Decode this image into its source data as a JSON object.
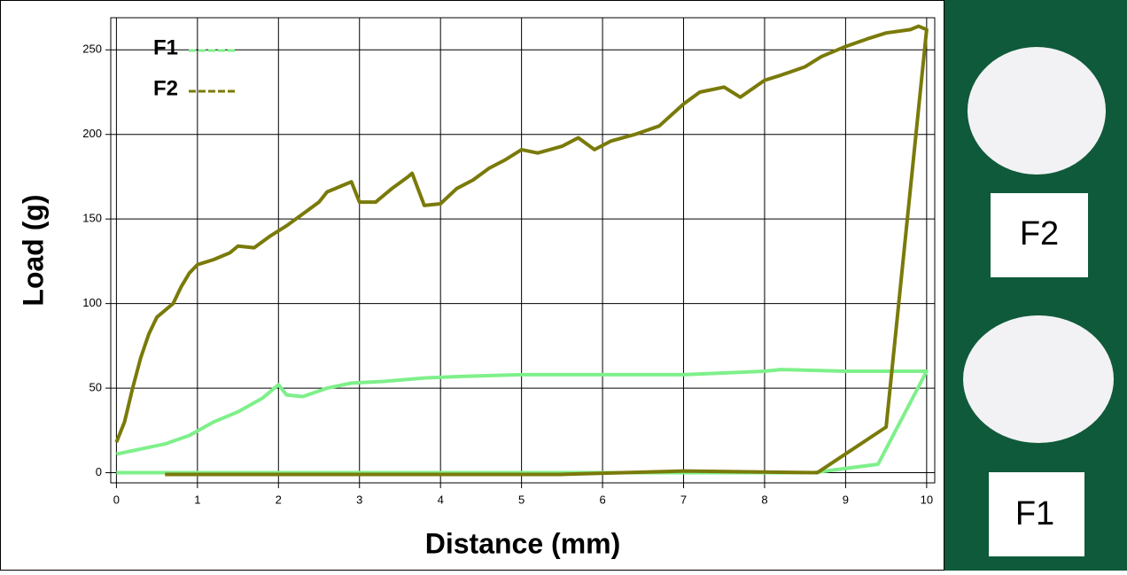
{
  "chart_data": {
    "type": "line",
    "xlabel": "Distance (mm)",
    "ylabel": "Load (g)",
    "xlim": [
      -0.07,
      10.1
    ],
    "ylim": [
      -6,
      269
    ],
    "xticks": [
      0,
      1,
      2,
      3,
      4,
      5,
      6,
      7,
      8,
      9,
      10
    ],
    "yticks": [
      0,
      50,
      100,
      150,
      200,
      250
    ],
    "grid": true,
    "legend": "upper left",
    "series": [
      {
        "name": "F1",
        "color": "#7ef08a",
        "x": [
          0,
          0.3,
          0.6,
          0.9,
          1.2,
          1.5,
          1.8,
          2.0,
          2.1,
          2.3,
          2.6,
          2.9,
          3.3,
          3.8,
          4.3,
          5,
          6,
          7,
          8,
          8.2,
          9,
          10,
          9.4,
          8.6,
          0
        ],
        "values": [
          11,
          14,
          17,
          22,
          30,
          36,
          44,
          52,
          46,
          45,
          50,
          53,
          54,
          56,
          57,
          58,
          58,
          58,
          60,
          61,
          60,
          60,
          5,
          0,
          0
        ]
      },
      {
        "name": "F2",
        "color": "#7a7a0a",
        "x": [
          0,
          0.1,
          0.2,
          0.3,
          0.4,
          0.5,
          0.7,
          0.8,
          0.9,
          1.0,
          1.2,
          1.4,
          1.5,
          1.7,
          1.9,
          2.1,
          2.3,
          2.5,
          2.6,
          2.8,
          2.9,
          3.0,
          3.2,
          3.4,
          3.6,
          3.65,
          3.8,
          4.0,
          4.2,
          4.4,
          4.6,
          4.8,
          5.0,
          5.2,
          5.5,
          5.7,
          5.9,
          6.1,
          6.4,
          6.7,
          7.0,
          7.2,
          7.5,
          7.7,
          8.0,
          8.2,
          8.5,
          8.7,
          9.0,
          9.3,
          9.5,
          9.8,
          9.9,
          10.0,
          9.5,
          8.65,
          7.0,
          5.5,
          3.0,
          0.6
        ],
        "values": [
          18,
          30,
          50,
          68,
          82,
          92,
          100,
          110,
          118,
          123,
          126,
          130,
          134,
          133,
          140,
          146,
          153,
          160,
          166,
          170,
          172,
          160,
          160,
          168,
          175,
          177,
          158,
          159,
          168,
          173,
          180,
          185,
          191,
          189,
          193,
          198,
          191,
          196,
          200,
          205,
          218,
          225,
          228,
          222,
          232,
          235,
          240,
          246,
          252,
          257,
          260,
          262,
          264,
          262,
          27,
          0,
          1,
          -1,
          -1,
          -1
        ]
      }
    ]
  },
  "photo": {
    "labels": [
      "F2",
      "F1"
    ]
  }
}
